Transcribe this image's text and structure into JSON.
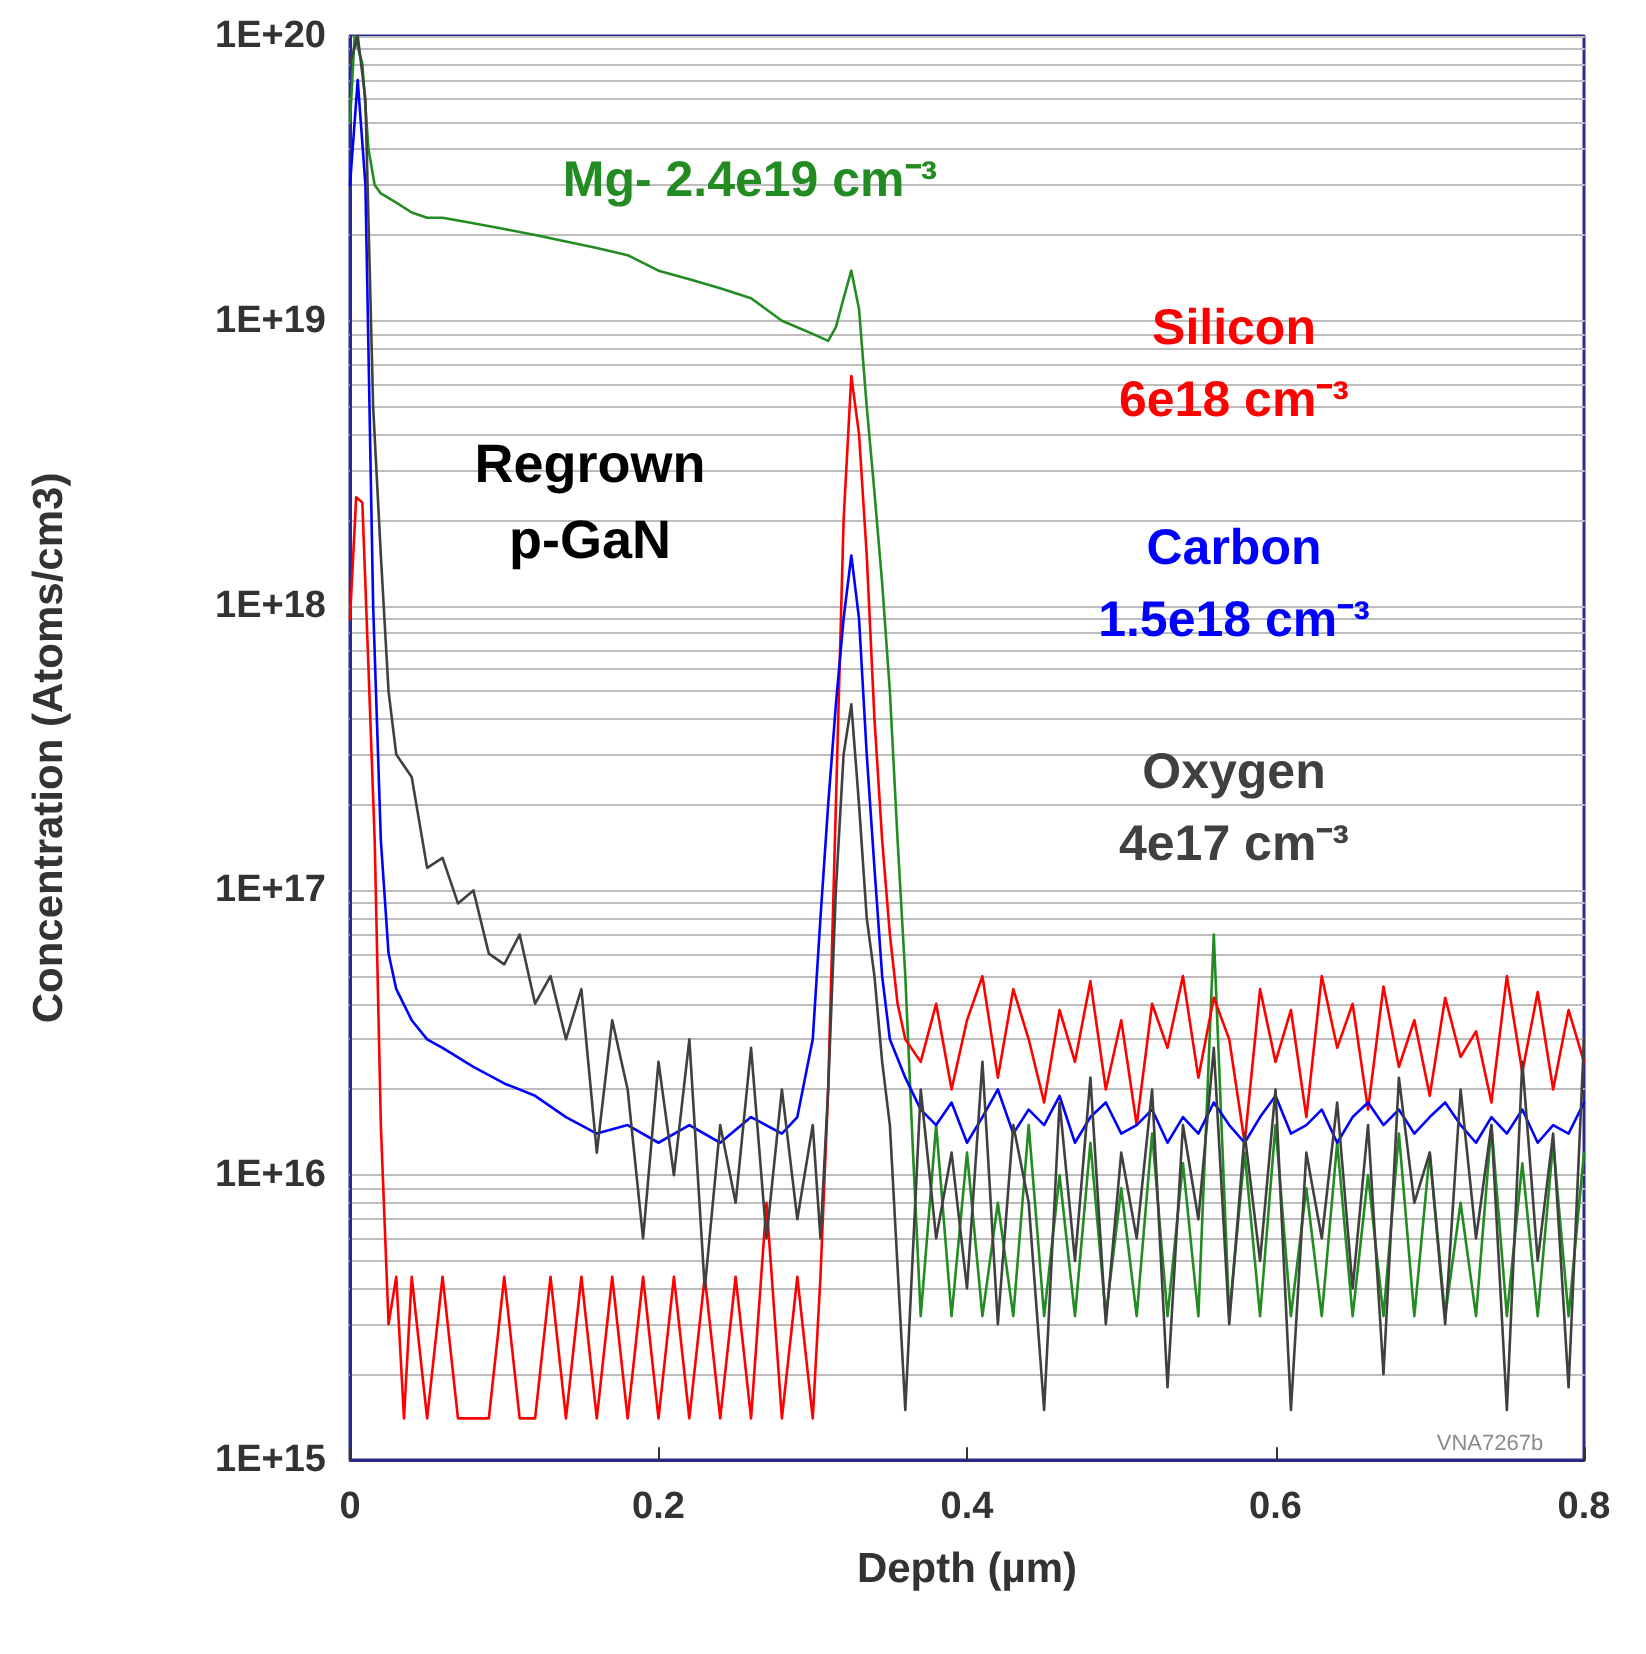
{
  "chart_data": {
    "type": "line",
    "xlabel": "Depth (µm)",
    "ylabel": "Concentration (Atoms/cm3)",
    "log": "y",
    "grid": "y",
    "legend": false,
    "marker": "none",
    "line_style": "solid",
    "xlim": [
      0,
      0.8
    ],
    "xticks": [
      0,
      0.2,
      0.4,
      0.6,
      0.8
    ],
    "ylim": [
      1000000000000000.0,
      1e+20
    ],
    "yticks": [
      {
        "value": 1000000000000000.0,
        "label": "1E+15"
      },
      {
        "value": 2000000000000000.0,
        "label": null
      },
      {
        "value": 3000000000000000.0,
        "label": null
      },
      {
        "value": 4000000000000000.0,
        "label": null
      },
      {
        "value": 5000000000000000.0,
        "label": null
      },
      {
        "value": 6000000000000000.0,
        "label": null
      },
      {
        "value": 7000000000000000.0,
        "label": null
      },
      {
        "value": 8000000000000000.0,
        "label": null
      },
      {
        "value": 9000000000000000.0,
        "label": null
      },
      {
        "value": 1e+16,
        "label": "1E+16"
      },
      {
        "value": 2e+16,
        "label": null
      },
      {
        "value": 3e+16,
        "label": null
      },
      {
        "value": 4e+16,
        "label": null
      },
      {
        "value": 5e+16,
        "label": null
      },
      {
        "value": 6e+16,
        "label": null
      },
      {
        "value": 7e+16,
        "label": null
      },
      {
        "value": 8e+16,
        "label": null
      },
      {
        "value": 9e+16,
        "label": null
      },
      {
        "value": 1e+17,
        "label": "1E+17"
      },
      {
        "value": 2e+17,
        "label": null
      },
      {
        "value": 3e+17,
        "label": null
      },
      {
        "value": 4e+17,
        "label": null
      },
      {
        "value": 5e+17,
        "label": null
      },
      {
        "value": 6e+17,
        "label": null
      },
      {
        "value": 7e+17,
        "label": null
      },
      {
        "value": 8e+17,
        "label": null
      },
      {
        "value": 9e+17,
        "label": null
      },
      {
        "value": 1e+18,
        "label": "1E+18"
      },
      {
        "value": 2e+18,
        "label": null
      },
      {
        "value": 3e+18,
        "label": null
      },
      {
        "value": 4e+18,
        "label": null
      },
      {
        "value": 5e+18,
        "label": null
      },
      {
        "value": 6e+18,
        "label": null
      },
      {
        "value": 7e+18,
        "label": null
      },
      {
        "value": 8e+18,
        "label": null
      },
      {
        "value": 9e+18,
        "label": null
      },
      {
        "value": 1e+19,
        "label": "1E+19"
      },
      {
        "value": 2e+19,
        "label": null
      },
      {
        "value": 3e+19,
        "label": null
      },
      {
        "value": 4e+19,
        "label": null
      },
      {
        "value": 5e+19,
        "label": null
      },
      {
        "value": 6e+19,
        "label": null
      },
      {
        "value": 7e+19,
        "label": null
      },
      {
        "value": 8e+19,
        "label": null
      },
      {
        "value": 9e+19,
        "label": null
      },
      {
        "value": 1e+20,
        "label": "1E+20"
      }
    ],
    "annotations": [
      "Regrown\np-GaN",
      "VNA7267b"
    ],
    "series": [
      {
        "name": "Mg- 2.4e19 cm⁻³",
        "color": "#228b22",
        "x": [
          0,
          0.003,
          0.008,
          0.012,
          0.016,
          0.02,
          0.03,
          0.04,
          0.05,
          0.06,
          0.08,
          0.1,
          0.12,
          0.14,
          0.16,
          0.18,
          0.2,
          0.22,
          0.24,
          0.26,
          0.28,
          0.3,
          0.31,
          0.315,
          0.32,
          0.325,
          0.33,
          0.335,
          0.34,
          0.345,
          0.35,
          0.355,
          0.36,
          0.365,
          0.37,
          0.38,
          0.39,
          0.4,
          0.41,
          0.42,
          0.43,
          0.44,
          0.45,
          0.46,
          0.47,
          0.48,
          0.49,
          0.5,
          0.51,
          0.52,
          0.53,
          0.54,
          0.55,
          0.56,
          0.57,
          0.58,
          0.59,
          0.6,
          0.61,
          0.62,
          0.63,
          0.64,
          0.65,
          0.66,
          0.67,
          0.68,
          0.69,
          0.7,
          0.71,
          0.72,
          0.73,
          0.74,
          0.75,
          0.76,
          0.77,
          0.78,
          0.79,
          0.8
        ],
        "values": [
          5e+19,
          1e+20,
          8e+19,
          4e+19,
          3e+19,
          2.8e+19,
          2.6e+19,
          2.4e+19,
          2.3e+19,
          2.3e+19,
          2.2e+19,
          2.1e+19,
          2e+19,
          1.9e+19,
          1.8e+19,
          1.7e+19,
          1.5e+19,
          1.4e+19,
          1.3e+19,
          1.2e+19,
          1e+19,
          9e+18,
          8.5e+18,
          9.5e+18,
          1.2e+19,
          1.5e+19,
          1.1e+19,
          5e+18,
          2.5e+18,
          1.2e+18,
          5e+17,
          1.5e+17,
          5e+16,
          1.2e+16,
          3200000000000000.0,
          1.5e+16,
          3200000000000000.0,
          1.2e+16,
          3200000000000000.0,
          8000000000000000.0,
          3200000000000000.0,
          1.5e+16,
          3200000000000000.0,
          1e+16,
          3200000000000000.0,
          1.3e+16,
          3200000000000000.0,
          9000000000000000.0,
          3200000000000000.0,
          1.4e+16,
          3200000000000000.0,
          1.1e+16,
          3200000000000000.0,
          7e+16,
          3200000000000000.0,
          1.2e+16,
          3200000000000000.0,
          1.5e+16,
          3200000000000000.0,
          9000000000000000.0,
          3200000000000000.0,
          1.3e+16,
          3200000000000000.0,
          1e+16,
          3200000000000000.0,
          1.4e+16,
          3200000000000000.0,
          1.2e+16,
          3200000000000000.0,
          8000000000000000.0,
          3200000000000000.0,
          1.5e+16,
          3200000000000000.0,
          1.1e+16,
          3200000000000000.0,
          1.3e+16,
          3200000000000000.0,
          1.2e+16
        ]
      },
      {
        "name": "Silicon\n6e18 cm⁻³",
        "color": "#ff0000",
        "x": [
          0,
          0.004,
          0.008,
          0.012,
          0.016,
          0.02,
          0.025,
          0.03,
          0.035,
          0.04,
          0.05,
          0.06,
          0.07,
          0.08,
          0.09,
          0.1,
          0.11,
          0.12,
          0.13,
          0.14,
          0.15,
          0.16,
          0.17,
          0.18,
          0.19,
          0.2,
          0.21,
          0.22,
          0.23,
          0.24,
          0.25,
          0.26,
          0.27,
          0.28,
          0.29,
          0.3,
          0.305,
          0.31,
          0.315,
          0.32,
          0.325,
          0.33,
          0.335,
          0.34,
          0.345,
          0.35,
          0.355,
          0.36,
          0.37,
          0.38,
          0.39,
          0.4,
          0.41,
          0.42,
          0.43,
          0.44,
          0.45,
          0.46,
          0.47,
          0.48,
          0.49,
          0.5,
          0.51,
          0.52,
          0.53,
          0.54,
          0.55,
          0.56,
          0.57,
          0.58,
          0.59,
          0.6,
          0.61,
          0.62,
          0.63,
          0.64,
          0.65,
          0.66,
          0.67,
          0.68,
          0.69,
          0.7,
          0.71,
          0.72,
          0.73,
          0.74,
          0.75,
          0.76,
          0.77,
          0.78,
          0.79,
          0.8
        ],
        "values": [
          9e+17,
          2.4e+18,
          2.3e+18,
          6e+17,
          1.5e+17,
          1.5e+16,
          3000000000000000.0,
          4400000000000000.0,
          1400000000000000.0,
          4400000000000000.0,
          1400000000000000.0,
          4400000000000000.0,
          1400000000000000.0,
          1400000000000000.0,
          1400000000000000.0,
          4400000000000000.0,
          1400000000000000.0,
          1400000000000000.0,
          4400000000000000.0,
          1400000000000000.0,
          4400000000000000.0,
          1400000000000000.0,
          4400000000000000.0,
          1400000000000000.0,
          4400000000000000.0,
          1400000000000000.0,
          4400000000000000.0,
          1400000000000000.0,
          4400000000000000.0,
          1400000000000000.0,
          4400000000000000.0,
          1400000000000000.0,
          8000000000000000.0,
          1400000000000000.0,
          4400000000000000.0,
          1400000000000000.0,
          4400000000000000.0,
          2e+16,
          2e+17,
          2e+18,
          6.4e+18,
          4e+18,
          1.5e+18,
          4e+17,
          1.5e+17,
          7e+16,
          4e+16,
          3e+16,
          2.5e+16,
          4e+16,
          2e+16,
          3.5e+16,
          5e+16,
          2.2e+16,
          4.5e+16,
          3e+16,
          1.8e+16,
          3.8e+16,
          2.5e+16,
          4.8e+16,
          2e+16,
          3.5e+16,
          1.5e+16,
          4e+16,
          2.8e+16,
          5e+16,
          2.2e+16,
          4.2e+16,
          3e+16,
          1.3e+16,
          4.5e+16,
          2.5e+16,
          3.8e+16,
          1.6e+16,
          5e+16,
          2.8e+16,
          4e+16,
          1.7e+16,
          4.6e+16,
          2.4e+16,
          3.5e+16,
          1.9e+16,
          4.2e+16,
          2.6e+16,
          3.2e+16,
          1.8e+16,
          5e+16,
          2.3e+16,
          4.4e+16,
          2e+16,
          3.8e+16,
          2.5e+16
        ]
      },
      {
        "name": "Carbon\n1.5e18 cm⁻³",
        "color": "#0000ff",
        "x": [
          0,
          0.005,
          0.01,
          0.015,
          0.02,
          0.025,
          0.03,
          0.04,
          0.05,
          0.06,
          0.08,
          0.1,
          0.12,
          0.14,
          0.16,
          0.18,
          0.2,
          0.22,
          0.24,
          0.26,
          0.28,
          0.29,
          0.3,
          0.305,
          0.31,
          0.315,
          0.32,
          0.325,
          0.33,
          0.335,
          0.34,
          0.345,
          0.35,
          0.36,
          0.37,
          0.38,
          0.39,
          0.4,
          0.41,
          0.42,
          0.43,
          0.44,
          0.45,
          0.46,
          0.47,
          0.48,
          0.49,
          0.5,
          0.51,
          0.52,
          0.53,
          0.54,
          0.55,
          0.56,
          0.57,
          0.58,
          0.59,
          0.6,
          0.61,
          0.62,
          0.63,
          0.64,
          0.65,
          0.66,
          0.67,
          0.68,
          0.69,
          0.7,
          0.71,
          0.72,
          0.73,
          0.74,
          0.75,
          0.76,
          0.77,
          0.78,
          0.79,
          0.8
        ],
        "values": [
          3e+19,
          7e+19,
          3e+19,
          1e+18,
          1.5e+17,
          6e+16,
          4.5e+16,
          3.5e+16,
          3e+16,
          2.8e+16,
          2.4e+16,
          2.1e+16,
          1.9e+16,
          1.6e+16,
          1.4e+16,
          1.5e+16,
          1.3e+16,
          1.5e+16,
          1.3e+16,
          1.6e+16,
          1.4e+16,
          1.6e+16,
          3e+16,
          8e+16,
          2e+17,
          4.5e+17,
          9e+17,
          1.5e+18,
          9e+17,
          3e+17,
          1.2e+17,
          5e+16,
          3e+16,
          2.2e+16,
          1.7e+16,
          1.5e+16,
          1.8e+16,
          1.3e+16,
          1.6e+16,
          2e+16,
          1.4e+16,
          1.7e+16,
          1.5e+16,
          1.9e+16,
          1.3e+16,
          1.6e+16,
          1.8e+16,
          1.4e+16,
          1.5e+16,
          1.7e+16,
          1.3e+16,
          1.6e+16,
          1.4e+16,
          1.8e+16,
          1.5e+16,
          1.3e+16,
          1.6e+16,
          1.9e+16,
          1.4e+16,
          1.5e+16,
          1.7e+16,
          1.3e+16,
          1.6e+16,
          1.8e+16,
          1.5e+16,
          1.7e+16,
          1.4e+16,
          1.6e+16,
          1.8e+16,
          1.5e+16,
          1.3e+16,
          1.6e+16,
          1.4e+16,
          1.7e+16,
          1.3e+16,
          1.5e+16,
          1.4e+16,
          1.8e+16
        ]
      },
      {
        "name": "Oxygen\n4e17 cm⁻³",
        "color": "#404040",
        "x": [
          0,
          0.005,
          0.01,
          0.015,
          0.02,
          0.025,
          0.03,
          0.04,
          0.05,
          0.06,
          0.07,
          0.08,
          0.09,
          0.1,
          0.11,
          0.12,
          0.13,
          0.14,
          0.15,
          0.16,
          0.17,
          0.18,
          0.19,
          0.2,
          0.21,
          0.22,
          0.23,
          0.24,
          0.25,
          0.26,
          0.27,
          0.28,
          0.29,
          0.3,
          0.305,
          0.31,
          0.315,
          0.32,
          0.325,
          0.33,
          0.335,
          0.34,
          0.345,
          0.35,
          0.36,
          0.37,
          0.38,
          0.39,
          0.4,
          0.41,
          0.42,
          0.43,
          0.44,
          0.45,
          0.46,
          0.47,
          0.48,
          0.49,
          0.5,
          0.51,
          0.52,
          0.53,
          0.54,
          0.55,
          0.56,
          0.57,
          0.58,
          0.59,
          0.6,
          0.61,
          0.62,
          0.63,
          0.64,
          0.65,
          0.66,
          0.67,
          0.68,
          0.69,
          0.7,
          0.71,
          0.72,
          0.73,
          0.74,
          0.75,
          0.76,
          0.77,
          0.78,
          0.79,
          0.8
        ],
        "values": [
          8e+19,
          1e+20,
          6e+19,
          5e+18,
          1.5e+18,
          5e+17,
          3e+17,
          2.5e+17,
          1.2e+17,
          1.3e+17,
          9e+16,
          1e+17,
          6e+16,
          5.5e+16,
          7e+16,
          4e+16,
          5e+16,
          3e+16,
          4.5e+16,
          1.2e+16,
          3.5e+16,
          2e+16,
          6000000000000000.0,
          2.5e+16,
          1e+16,
          3e+16,
          4000000000000000.0,
          1.5e+16,
          8000000000000000.0,
          2.8e+16,
          6000000000000000.0,
          2e+16,
          7000000000000000.0,
          1.5e+16,
          6000000000000000.0,
          2e+16,
          1e+17,
          3e+17,
          4.5e+17,
          2e+17,
          8e+16,
          5e+16,
          2.5e+16,
          1.5e+16,
          1500000000000000.0,
          2e+16,
          6000000000000000.0,
          1.2e+16,
          4000000000000000.0,
          2.5e+16,
          3000000000000000.0,
          1.5e+16,
          8000000000000000.0,
          1500000000000000.0,
          1.8e+16,
          5000000000000000.0,
          2.2e+16,
          3000000000000000.0,
          1.2e+16,
          6000000000000000.0,
          2e+16,
          1800000000000000.0,
          1.5e+16,
          7000000000000000.0,
          2.8e+16,
          3000000000000000.0,
          1.4e+16,
          5000000000000000.0,
          2e+16,
          1500000000000000.0,
          1.2e+16,
          6000000000000000.0,
          1.8e+16,
          4000000000000000.0,
          1.5e+16,
          2000000000000000.0,
          2.2e+16,
          8000000000000000.0,
          1.2e+16,
          3000000000000000.0,
          2e+16,
          6000000000000000.0,
          1.5e+16,
          1500000000000000.0,
          2.5e+16,
          5000000000000000.0,
          1.4e+16,
          1800000000000000.0,
          3e+16
        ]
      }
    ]
  }
}
